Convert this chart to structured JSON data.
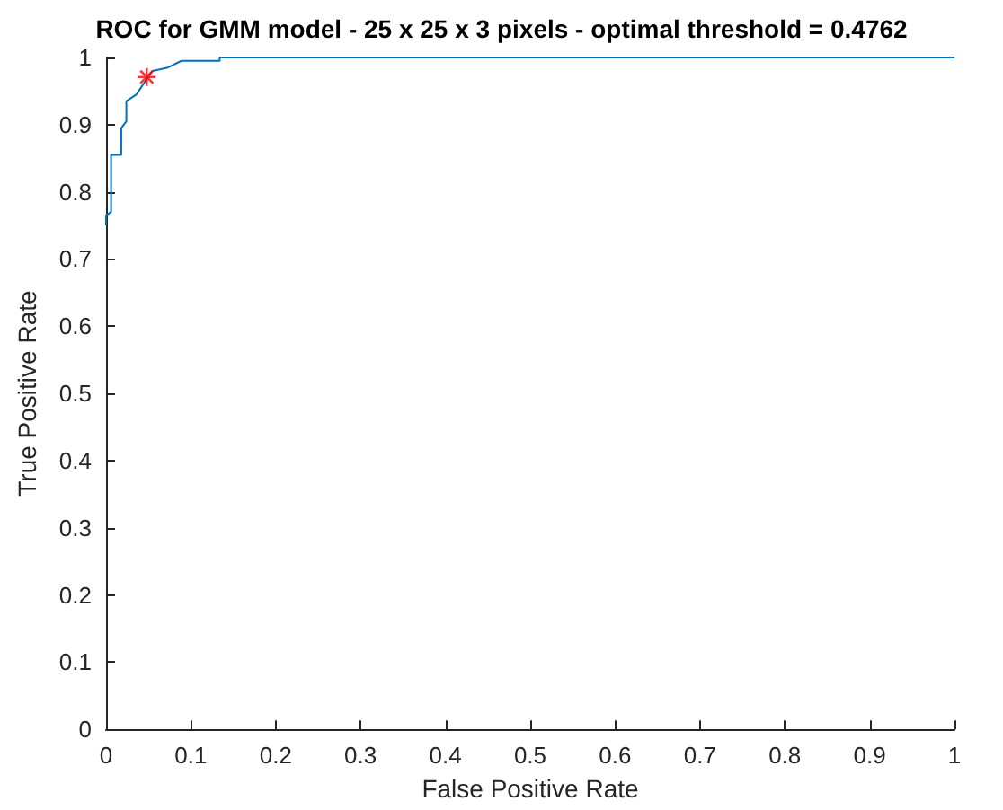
{
  "chart_data": {
    "type": "line",
    "title": "ROC for GMM model - 25 x 25 x 3 pixels - optimal threshold = 0.4762",
    "xlabel": "False Positive Rate",
    "ylabel": "True Positive Rate",
    "xlim": [
      0,
      1
    ],
    "ylim": [
      0,
      1
    ],
    "xticks": [
      0,
      0.1,
      0.2,
      0.3,
      0.4,
      0.5,
      0.6,
      0.7,
      0.8,
      0.9,
      1
    ],
    "yticks": [
      0,
      0.1,
      0.2,
      0.3,
      0.4,
      0.5,
      0.6,
      0.7,
      0.8,
      0.9,
      1
    ],
    "grid": false,
    "series": [
      {
        "color": "#0072bd",
        "marker": "none",
        "x": [
          0,
          0,
          0.006,
          0.006,
          0.018,
          0.018,
          0.024,
          0.024,
          0.036,
          0.049,
          0.055,
          0.073,
          0.089,
          0.134,
          0.134,
          1
        ],
        "values": [
          0.75,
          0.765,
          0.77,
          0.855,
          0.855,
          0.895,
          0.905,
          0.935,
          0.945,
          0.97,
          0.98,
          0.985,
          0.995,
          0.995,
          1,
          1
        ]
      },
      {
        "type": "scatter",
        "color": "#ff0000",
        "marker": "cross",
        "x": [
          0.048
        ],
        "values": [
          0.971
        ]
      }
    ]
  }
}
